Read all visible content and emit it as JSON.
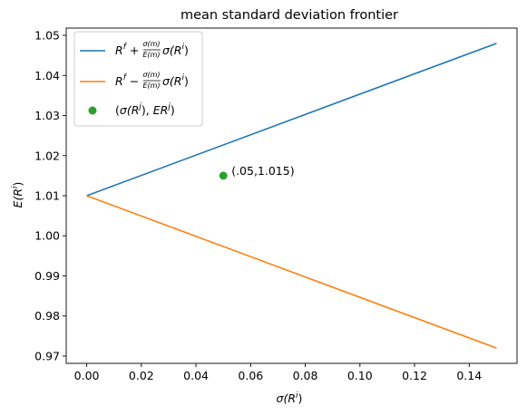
{
  "chart_data": {
    "type": "line",
    "title": "mean standard deviation frontier",
    "xlabel": {
      "main": "σ(R",
      "sup": "i",
      "tail": ")"
    },
    "ylabel": {
      "main": "E(R",
      "sup": "i",
      "tail": ")"
    },
    "xlim": [
      -0.0075,
      0.1575
    ],
    "ylim": [
      0.96819,
      1.05181
    ],
    "x_ticks": [
      0.0,
      0.02,
      0.04,
      0.06,
      0.08,
      0.1,
      0.12,
      0.14
    ],
    "x_tick_labels": [
      "0.00",
      "0.02",
      "0.04",
      "0.06",
      "0.08",
      "0.10",
      "0.12",
      "0.14"
    ],
    "y_ticks": [
      0.97,
      0.98,
      0.99,
      1.0,
      1.01,
      1.02,
      1.03,
      1.04,
      1.05
    ],
    "y_tick_labels": [
      "0.97",
      "0.98",
      "0.99",
      "1.00",
      "1.01",
      "1.02",
      "1.03",
      "1.04",
      "1.05"
    ],
    "grid": false,
    "legend_position": "top-left",
    "series": [
      {
        "type": "line",
        "legend": "R^f + σ(m)/E(m) σ(R^i)",
        "color": "#1f77b4",
        "x": [
          0.0,
          0.15
        ],
        "y": [
          1.01,
          1.048
        ]
      },
      {
        "type": "line",
        "legend": "R^f − σ(m)/E(m) σ(R^i)",
        "color": "#ff7f0e",
        "x": [
          0.0,
          0.15
        ],
        "y": [
          1.01,
          0.972
        ]
      },
      {
        "type": "scatter",
        "legend": "(σ(R^j), ER^j)",
        "color": "#2ca02c",
        "x": [
          0.05
        ],
        "y": [
          1.015
        ]
      }
    ],
    "annotations": [
      {
        "text": "(.05,1.015)",
        "x": 0.05,
        "y": 1.015
      }
    ]
  }
}
